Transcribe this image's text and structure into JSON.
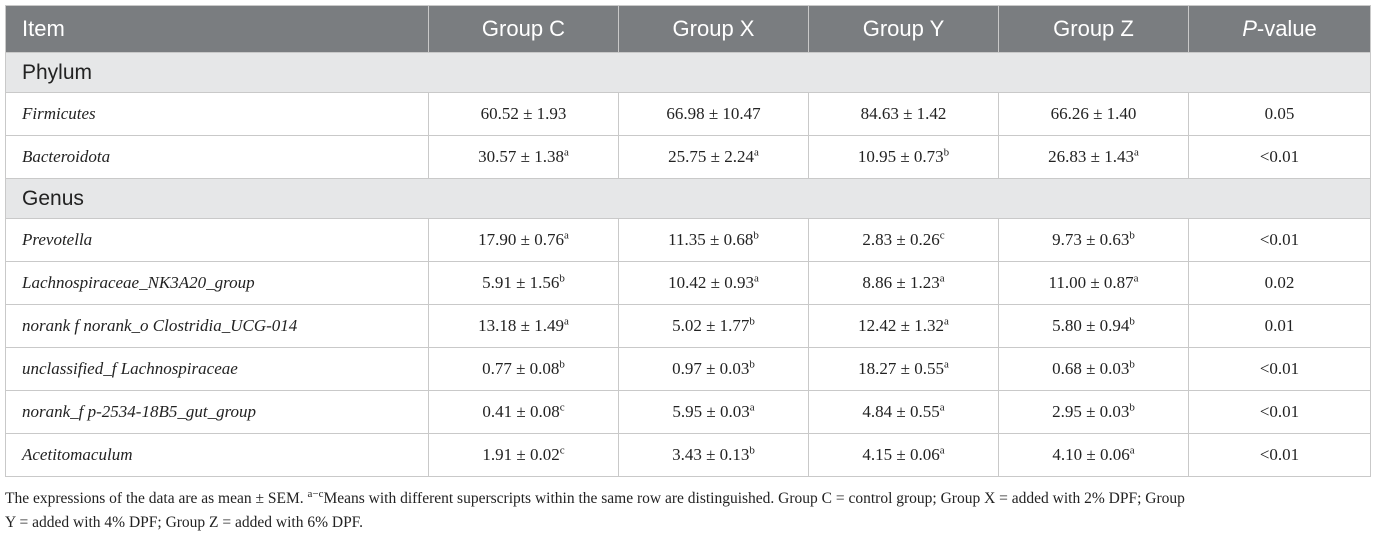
{
  "table": {
    "headers": [
      "Item",
      "Group C",
      "Group X",
      "Group Y",
      "Group Z",
      "P-value"
    ],
    "sections": [
      {
        "title": "Phylum",
        "rows": [
          {
            "item": "Firmicutes",
            "cells": [
              {
                "v": "60.52 ± 1.93",
                "s": ""
              },
              {
                "v": "66.98 ± 10.47",
                "s": ""
              },
              {
                "v": "84.63 ± 1.42",
                "s": ""
              },
              {
                "v": "66.26 ± 1.40",
                "s": ""
              }
            ],
            "p": "0.05"
          },
          {
            "item": "Bacteroidota",
            "cells": [
              {
                "v": "30.57 ± 1.38",
                "s": "a"
              },
              {
                "v": "25.75 ± 2.24",
                "s": "a"
              },
              {
                "v": "10.95 ± 0.73",
                "s": "b"
              },
              {
                "v": "26.83 ± 1.43",
                "s": "a"
              }
            ],
            "p": "<0.01"
          }
        ]
      },
      {
        "title": "Genus",
        "rows": [
          {
            "item": "Prevotella",
            "cells": [
              {
                "v": "17.90 ± 0.76",
                "s": "a"
              },
              {
                "v": "11.35 ± 0.68",
                "s": "b"
              },
              {
                "v": "2.83 ± 0.26",
                "s": "c"
              },
              {
                "v": "9.73 ± 0.63",
                "s": "b"
              }
            ],
            "p": "<0.01"
          },
          {
            "item": "Lachnospiraceae_NK3A20_group",
            "cells": [
              {
                "v": "5.91 ± 1.56",
                "s": "b"
              },
              {
                "v": "10.42 ± 0.93",
                "s": "a"
              },
              {
                "v": "8.86 ± 1.23",
                "s": "a"
              },
              {
                "v": "11.00 ± 0.87",
                "s": "a"
              }
            ],
            "p": "0.02"
          },
          {
            "item": "norank f norank_o Clostridia_UCG-014",
            "cells": [
              {
                "v": "13.18 ± 1.49",
                "s": "a"
              },
              {
                "v": "5.02 ± 1.77",
                "s": "b"
              },
              {
                "v": "12.42 ± 1.32",
                "s": "a"
              },
              {
                "v": "5.80 ± 0.94",
                "s": "b"
              }
            ],
            "p": "0.01"
          },
          {
            "item": "unclassified_f Lachnospiraceae",
            "cells": [
              {
                "v": "0.77 ± 0.08",
                "s": "b"
              },
              {
                "v": "0.97 ± 0.03",
                "s": "b"
              },
              {
                "v": "18.27 ± 0.55",
                "s": "a"
              },
              {
                "v": "0.68 ± 0.03",
                "s": "b"
              }
            ],
            "p": "<0.01"
          },
          {
            "item": "norank_f p-2534-18B5_gut_group",
            "cells": [
              {
                "v": "0.41 ± 0.08",
                "s": "c"
              },
              {
                "v": "5.95 ± 0.03",
                "s": "a"
              },
              {
                "v": "4.84 ± 0.55",
                "s": "a"
              },
              {
                "v": "2.95 ± 0.03",
                "s": "b"
              }
            ],
            "p": "<0.01"
          },
          {
            "item": "Acetitomaculum",
            "cells": [
              {
                "v": "1.91 ± 0.02",
                "s": "c"
              },
              {
                "v": "3.43 ± 0.13",
                "s": "b"
              },
              {
                "v": "4.15 ± 0.06",
                "s": "a"
              },
              {
                "v": "4.10 ± 0.06",
                "s": "a"
              }
            ],
            "p": "<0.01"
          }
        ]
      }
    ]
  },
  "footnote": {
    "line1_a": "The expressions of the data are as mean ± SEM. ",
    "line1_sup": "a−c",
    "line1_b": "Means with different superscripts within the same row are distinguished. Group C = control group; Group X = added with 2% DPF; Group",
    "line2": "Y = added with 4% DPF; Group Z = added with 6% DPF."
  }
}
